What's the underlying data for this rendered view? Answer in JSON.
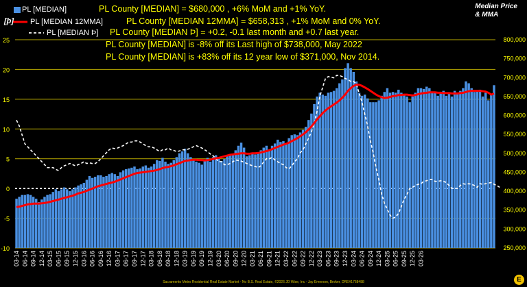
{
  "legend": [
    {
      "label": "PL [MEDIAN]",
      "color": "#4a90e2"
    },
    {
      "label": "PL [MEDIAN 12MMA]",
      "color": "#ff0000"
    },
    {
      "label": "PL [MEDIAN Þ]",
      "color": "#ffffff"
    }
  ],
  "annotations": [
    "PL County [MEDIAN] = $680,000 , +6% MoM and +1% YoY.",
    "PL County [MEDIAN 12MMA] = $658,313 , +1% MoM and 0% YoY.",
    "PL County [MEDIAN Þ] = +0.2, -0.1 last month and +0.7 last year.",
    "PL County [MEDIAN] is -8% off its Last high of $738,000, May 2022",
    "PL County [MEDIAN] is +83% off its 12 year low of $371,000, Nov 2014."
  ],
  "title_right_line1": "Median Price",
  "title_right_line2": "& MMA",
  "left_unit": "[þ]",
  "footer": "Sacramento Metro Residential Real Estate Market - No B.S. Real Estate, ©2026 JD Wise, Inc - Jay Emerson, Broker, DRE#1768488",
  "logo_letter": "E",
  "chart_data": {
    "type": "bar",
    "grid": true,
    "colors": {
      "bars": "#4a90e2",
      "mma": "#ff0000",
      "thorn": "#ffffff",
      "grid": "#b8a800",
      "axis_text": "#ffff00"
    },
    "left_axis": {
      "ylim": [
        -10,
        25
      ],
      "ticks": [
        "-10",
        "-5",
        "0",
        "5",
        "10",
        "15",
        "20",
        "25"
      ]
    },
    "right_axis": {
      "ylim": [
        250000,
        800000
      ],
      "ticks": [
        "250,000",
        "300,000",
        "350,000",
        "400,000",
        "450,000",
        "500,000",
        "550,000",
        "600,000",
        "650,000",
        "700,000",
        "750,000",
        "800,000"
      ]
    },
    "x_tick_labels": [
      "03-14",
      "06-14",
      "09-14",
      "12-14",
      "03-15",
      "06-15",
      "09-15",
      "12-15",
      "03-16",
      "06-16",
      "09-16",
      "12-16",
      "03-17",
      "06-17",
      "09-17",
      "12-17",
      "03-18",
      "06-18",
      "09-18",
      "12-18",
      "03-19",
      "06-19",
      "09-19",
      "12-19",
      "03-20",
      "06-20",
      "09-20",
      "12-20",
      "03-21",
      "06-21",
      "09-21",
      "12-21",
      "03-22",
      "06-22",
      "09-22",
      "12-22",
      "03-23",
      "06-23",
      "09-23",
      "12-23",
      "03-24",
      "06-24",
      "09-24",
      "12-24",
      "03-25",
      "06-25",
      "09-25",
      "12-25",
      "03-26"
    ],
    "start_month": "2014-03",
    "median": [
      380000,
      385000,
      390000,
      390000,
      392000,
      390000,
      385000,
      380000,
      371000,
      378000,
      385000,
      390000,
      392000,
      398000,
      405000,
      400000,
      405000,
      410000,
      405000,
      400000,
      405000,
      410000,
      415000,
      418000,
      422000,
      430000,
      440000,
      435000,
      438000,
      442000,
      442000,
      438000,
      440000,
      445000,
      448000,
      445000,
      440000,
      450000,
      455000,
      458000,
      460000,
      462000,
      465000,
      458000,
      460000,
      465000,
      468000,
      462000,
      465000,
      472000,
      482000,
      480000,
      488000,
      478000,
      472000,
      475000,
      482000,
      490000,
      500000,
      505000,
      512000,
      500000,
      490000,
      485000,
      478000,
      475000,
      470000,
      480000,
      488000,
      478000,
      490000,
      495000,
      488000,
      480000,
      485000,
      495000,
      498000,
      498000,
      508000,
      520000,
      528000,
      515000,
      492000,
      495000,
      500000,
      497000,
      502000,
      508000,
      515000,
      520000,
      510000,
      520000,
      526000,
      536000,
      530000,
      532000,
      527000,
      540000,
      548000,
      550000,
      548000,
      555000,
      562000,
      570000,
      588000,
      605000,
      630000,
      650000,
      660000,
      655000,
      652000,
      660000,
      662000,
      665000,
      672000,
      685000,
      695000,
      725000,
      738000,
      725000,
      715000,
      690000,
      660000,
      652000,
      655000,
      645000,
      635000,
      635000,
      635000,
      640000,
      652000,
      662000,
      672000,
      660000,
      662000,
      660000,
      668000,
      660000,
      655000,
      650000,
      635000,
      650000,
      660000,
      672000,
      672000,
      670000,
      676000,
      672000,
      660000,
      660000,
      652000,
      658000,
      665000,
      652000,
      660000,
      650000,
      665000,
      660000,
      665000,
      672000,
      690000,
      685000,
      672000,
      662000,
      665000,
      668000,
      650000,
      660000,
      640000,
      655000,
      680000
    ],
    "mma": [
      358000,
      359000,
      361000,
      363000,
      365000,
      366000,
      367000,
      367000,
      367000,
      368000,
      369000,
      370000,
      372000,
      374000,
      376000,
      378000,
      380000,
      382000,
      384000,
      386000,
      388000,
      391000,
      394000,
      396000,
      398000,
      401000,
      404000,
      407000,
      410000,
      413000,
      415000,
      417000,
      419000,
      421000,
      423000,
      425000,
      428000,
      431000,
      434000,
      437000,
      440000,
      443000,
      446000,
      448000,
      449000,
      450000,
      451000,
      452000,
      453000,
      454000,
      456000,
      458000,
      461000,
      463000,
      464000,
      466000,
      468000,
      471000,
      474000,
      477000,
      480000,
      481000,
      482000,
      483000,
      483000,
      482000,
      482000,
      481000,
      482000,
      483000,
      485000,
      487000,
      488000,
      490000,
      492000,
      494000,
      496000,
      497000,
      498000,
      499000,
      500000,
      500000,
      499000,
      499000,
      500000,
      500000,
      501000,
      502000,
      504000,
      506000,
      508000,
      511000,
      514000,
      517000,
      520000,
      523000,
      525000,
      528000,
      532000,
      536000,
      540000,
      545000,
      550000,
      556000,
      563000,
      571000,
      580000,
      590000,
      598000,
      606000,
      613000,
      619000,
      624000,
      629000,
      634000,
      640000,
      647000,
      655000,
      665000,
      672000,
      678000,
      681000,
      681000,
      678000,
      674000,
      670000,
      665000,
      660000,
      655000,
      651000,
      648000,
      646000,
      647000,
      649000,
      651000,
      652000,
      654000,
      654000,
      655000,
      655000,
      654000,
      653000,
      654000,
      656000,
      658000,
      659000,
      660000,
      661000,
      661000,
      661000,
      660000,
      660000,
      659000,
      659000,
      659000,
      658000,
      658000,
      658000,
      659000,
      660000,
      662000,
      664000,
      665000,
      665000,
      665000,
      665000,
      664000,
      663000,
      660000,
      655000,
      658000
    ],
    "thorn": [
      11.5,
      10.5,
      9.0,
      7.5,
      7.0,
      6.5,
      6.0,
      5.5,
      5.0,
      4.5,
      4.0,
      3.5,
      3.5,
      3.5,
      3.2,
      3.0,
      3.5,
      3.8,
      4.0,
      4.2,
      4.0,
      3.8,
      4.0,
      4.2,
      4.5,
      4.2,
      4.3,
      4.2,
      4.2,
      4.5,
      5.0,
      5.5,
      6.0,
      6.5,
      6.8,
      6.7,
      6.8,
      7.0,
      7.2,
      7.5,
      7.8,
      7.8,
      8.0,
      8.0,
      7.8,
      7.5,
      7.2,
      7.0,
      7.0,
      6.8,
      6.5,
      6.2,
      6.5,
      6.5,
      6.8,
      6.5,
      6.4,
      6.2,
      6.3,
      6.5,
      6.5,
      6.6,
      6.8,
      7.0,
      7.2,
      7.0,
      6.8,
      6.5,
      6.2,
      5.8,
      5.5,
      5.0,
      4.5,
      4.5,
      4.0,
      4.0,
      4.2,
      4.5,
      4.8,
      4.7,
      4.6,
      4.4,
      4.2,
      4.0,
      3.8,
      3.7,
      3.5,
      3.8,
      4.5,
      5.0,
      5.0,
      5.2,
      4.8,
      4.5,
      4.2,
      4.0,
      3.5,
      3.3,
      3.8,
      4.5,
      5.0,
      6.0,
      6.5,
      7.5,
      8.5,
      9.5,
      11.0,
      13.0,
      15.5,
      17.0,
      18.5,
      18.8,
      18.7,
      18.6,
      19.0,
      19.0,
      18.8,
      18.5,
      18.3,
      18.0,
      18.0,
      17.5,
      16.0,
      14.5,
      12.5,
      10.5,
      8.0,
      6.0,
      3.5,
      1.5,
      -1.0,
      -2.5,
      -3.5,
      -4.5,
      -5.0,
      -4.8,
      -4.2,
      -3.0,
      -1.8,
      -1.0,
      0.0,
      0.2,
      0.5,
      0.7,
      0.8,
      1.2,
      1.3,
      1.5,
      1.5,
      1.2,
      1.2,
      1.3,
      1.2,
      1.0,
      0.5,
      0.0,
      0.0,
      0.0,
      0.5,
      0.8,
      0.7,
      0.8,
      0.7,
      0.5,
      0.2,
      0.8,
      0.7,
      0.8,
      0.9,
      1.0,
      0.7,
      0.5,
      0.2
    ]
  }
}
